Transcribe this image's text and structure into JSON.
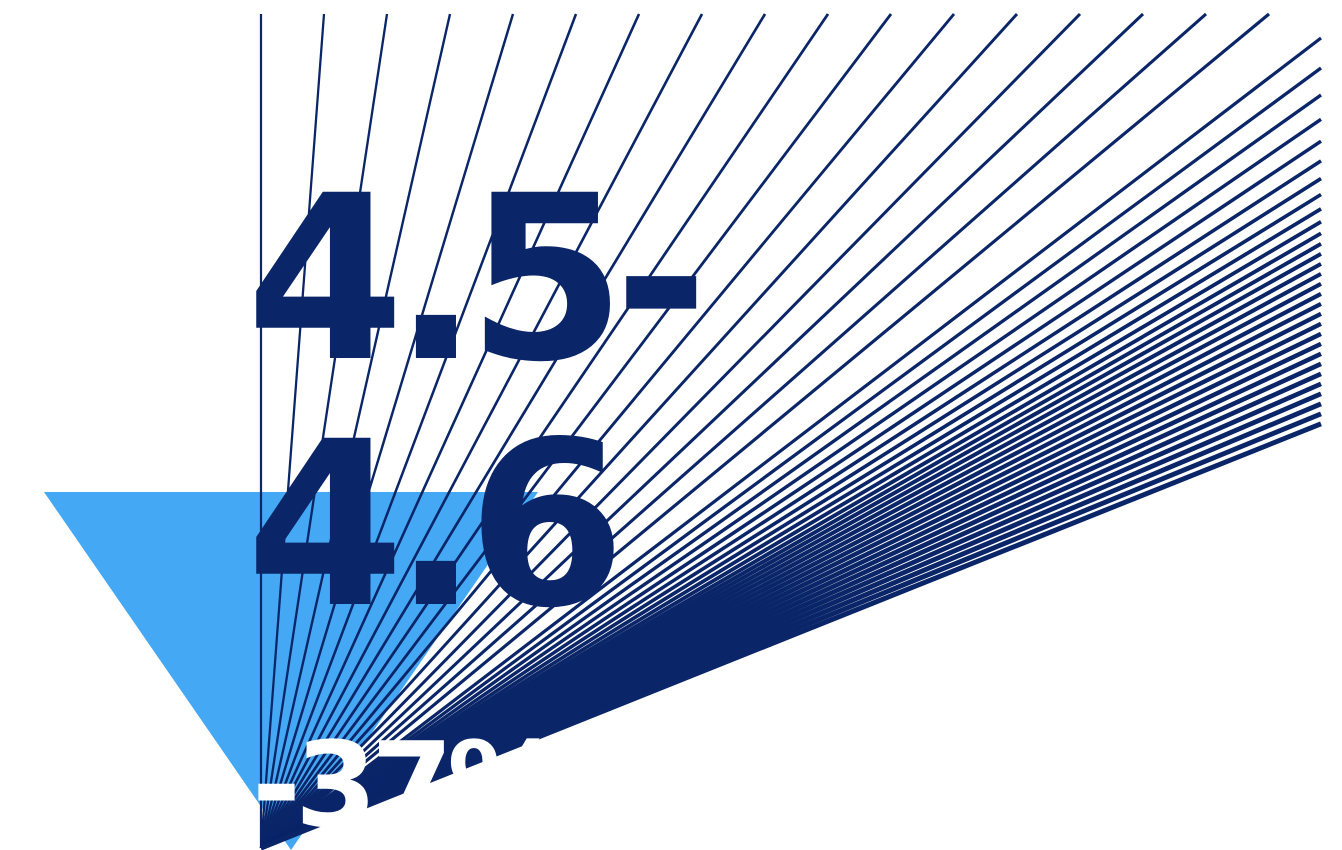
{
  "graphic": {
    "line1": "4.5-",
    "line2": "4.6",
    "percent": "-37%"
  },
  "colors": {
    "background": "#ffffff",
    "navy": "#0a2568",
    "sky_blue": "#44a8f5",
    "white": "#ffffff"
  },
  "icons": {
    "triangle": "down-triangle-icon",
    "rays": "sunburst-lines"
  }
}
